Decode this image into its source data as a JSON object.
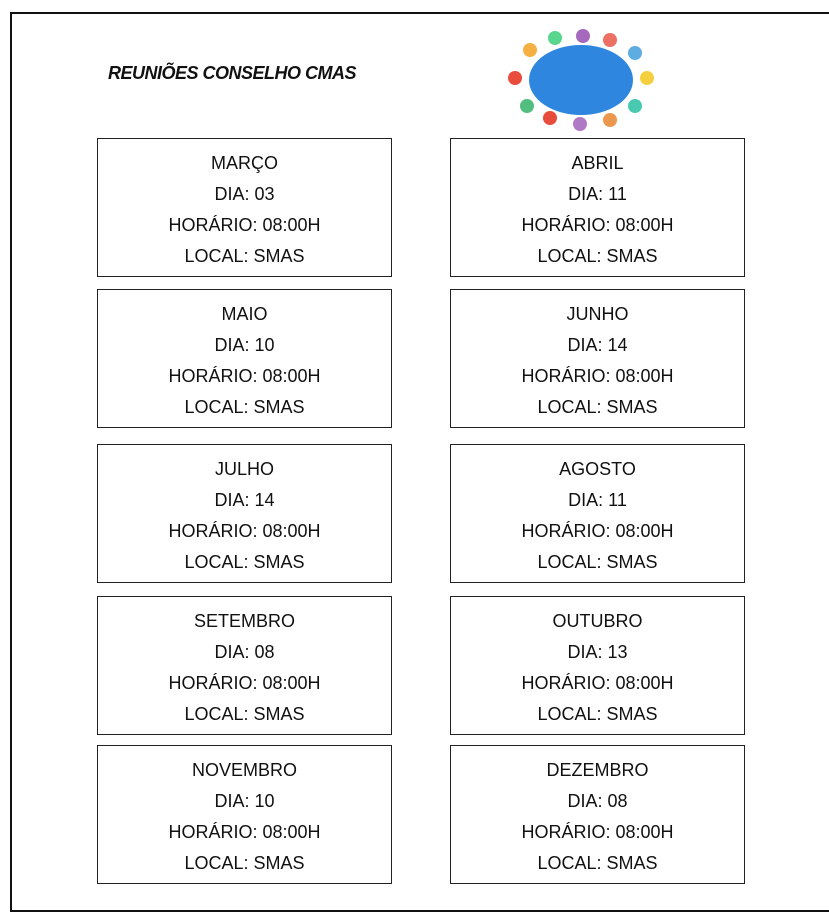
{
  "title": "REUNIÕES CONSELHO CMAS",
  "meetings": [
    {
      "month": "MARÇO",
      "day": "DIA: 03",
      "time": "HORÁRIO: 08:00H",
      "place": "LOCAL: SMAS"
    },
    {
      "month": "ABRIL",
      "day": "DIA: 11",
      "time": "HORÁRIO: 08:00H",
      "place": "LOCAL: SMAS"
    },
    {
      "month": "MAIO",
      "day": "DIA: 10",
      "time": "HORÁRIO: 08:00H",
      "place": "LOCAL: SMAS"
    },
    {
      "month": "JUNHO",
      "day": "DIA: 14",
      "time": "HORÁRIO: 08:00H",
      "place": "LOCAL: SMAS"
    },
    {
      "month": "JULHO",
      "day": "DIA: 14",
      "time": "HORÁRIO: 08:00H",
      "place": "LOCAL: SMAS"
    },
    {
      "month": "AGOSTO",
      "day": "DIA: 11",
      "time": "HORÁRIO: 08:00H",
      "place": "LOCAL: SMAS"
    },
    {
      "month": "SETEMBRO",
      "day": "DIA: 08",
      "time": "HORÁRIO: 08:00H",
      "place": "LOCAL: SMAS"
    },
    {
      "month": "OUTUBRO",
      "day": "DIA: 13",
      "time": "HORÁRIO: 08:00H",
      "place": "LOCAL: SMAS"
    },
    {
      "month": "NOVEMBRO",
      "day": "DIA: 10",
      "time": "HORÁRIO: 08:00H",
      "place": "LOCAL: SMAS"
    },
    {
      "month": "DEZEMBRO",
      "day": "DIA: 08",
      "time": "HORÁRIO: 08:00H",
      "place": "LOCAL: SMAS"
    }
  ]
}
